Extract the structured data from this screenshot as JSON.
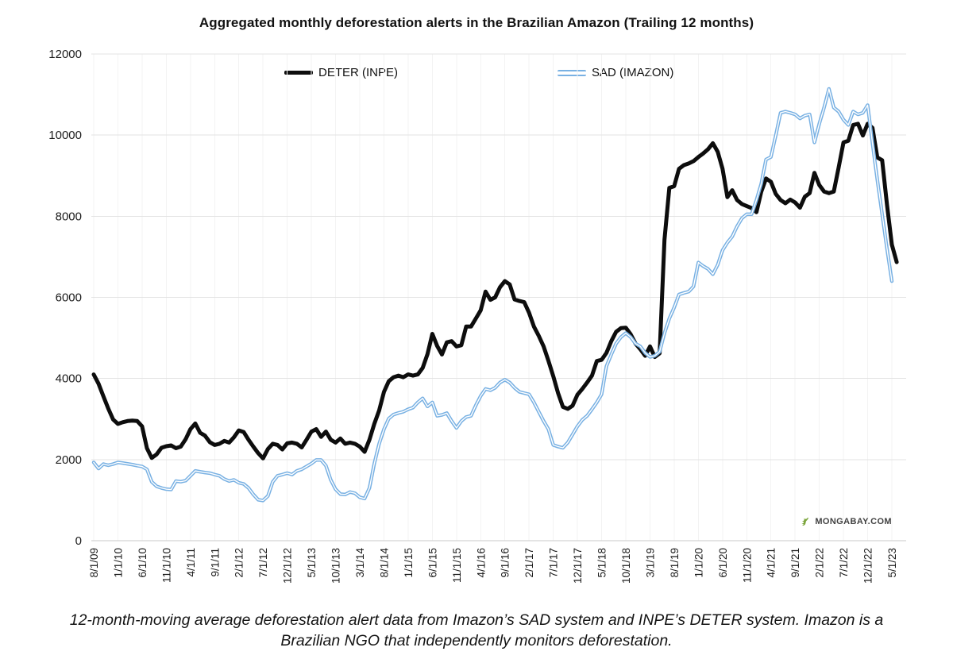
{
  "title": "Aggregated monthly deforestation alerts in the Brazilian Amazon (Trailing 12 months)",
  "legend": [
    {
      "label": "DETER (INPE)",
      "color": "#0d0d0d",
      "style": "solid"
    },
    {
      "label": "SAD (IMAZON)",
      "color": "#79b1e3",
      "style": "double"
    }
  ],
  "branding": {
    "text": "MONGABAY.COM",
    "icon": "gecko-icon",
    "text_color": "#414141",
    "icon_color": "#7ca63d"
  },
  "caption": "12-month-moving average deforestation alert data from Imazon’s SAD system and INPE’s DETER system. Imazon is a Brazilian NGO that independently monitors deforestation.",
  "chart_data": {
    "type": "line",
    "title": "Aggregated monthly deforestation alerts in the Brazilian Amazon (Trailing 12 months)",
    "xlabel": "",
    "ylabel": "",
    "ylim": [
      0,
      12000
    ],
    "yticks": [
      0,
      2000,
      4000,
      6000,
      8000,
      10000,
      12000
    ],
    "grid": true,
    "legend_position": "top-inside",
    "x_monthly_start": "8/1/09",
    "x_tick_every_months": 5,
    "x_tick_labels": [
      "8/1/09",
      "1/1/10",
      "6/1/10",
      "11/1/10",
      "4/1/11",
      "9/1/11",
      "2/1/12",
      "7/1/12",
      "12/1/12",
      "5/1/13",
      "10/1/13",
      "3/1/14",
      "8/1/14",
      "1/1/15",
      "6/1/15",
      "11/1/15",
      "4/1/16",
      "9/1/16",
      "2/1/17",
      "7/1/17",
      "12/1/17",
      "5/1/18",
      "10/1/18",
      "3/1/19",
      "8/1/19",
      "1/1/20",
      "6/1/20",
      "11/1/20",
      "4/1/21",
      "9/1/21",
      "2/1/22",
      "7/1/22",
      "12/1/22",
      "5/1/23"
    ],
    "series": [
      {
        "name": "DETER (INPE)",
        "color": "#0d0d0d",
        "width": 5,
        "double_line": false,
        "values": [
          4100,
          3870,
          3560,
          3260,
          2990,
          2880,
          2920,
          2950,
          2960,
          2950,
          2820,
          2280,
          2040,
          2130,
          2290,
          2330,
          2350,
          2280,
          2320,
          2500,
          2750,
          2890,
          2660,
          2590,
          2430,
          2360,
          2390,
          2460,
          2420,
          2550,
          2720,
          2680,
          2490,
          2320,
          2160,
          2030,
          2260,
          2390,
          2360,
          2250,
          2400,
          2420,
          2390,
          2300,
          2490,
          2690,
          2750,
          2560,
          2690,
          2490,
          2420,
          2520,
          2390,
          2420,
          2390,
          2320,
          2190,
          2490,
          2880,
          3210,
          3670,
          3930,
          4030,
          4070,
          4030,
          4100,
          4070,
          4100,
          4260,
          4600,
          5100,
          4800,
          4590,
          4890,
          4920,
          4790,
          4820,
          5280,
          5280,
          5480,
          5680,
          6140,
          5940,
          6000,
          6250,
          6400,
          6320,
          5950,
          5910,
          5880,
          5620,
          5280,
          5050,
          4790,
          4440,
          4060,
          3640,
          3300,
          3250,
          3330,
          3600,
          3740,
          3900,
          4070,
          4430,
          4460,
          4630,
          4920,
          5150,
          5240,
          5250,
          5090,
          4860,
          4720,
          4560,
          4790,
          4530,
          4620,
          7420,
          8700,
          8740,
          9170,
          9260,
          9300,
          9360,
          9460,
          9550,
          9650,
          9800,
          9590,
          9170,
          8470,
          8640,
          8400,
          8300,
          8250,
          8200,
          8100,
          8600,
          8930,
          8850,
          8550,
          8400,
          8320,
          8410,
          8340,
          8210,
          8480,
          8570,
          9070,
          8770,
          8610,
          8570,
          8610,
          9200,
          9820,
          9860,
          10250,
          10280,
          9990,
          10280,
          10180,
          9450,
          9380,
          8280,
          7300,
          6870
        ]
      },
      {
        "name": "SAD (IMAZON)",
        "color": "#79b1e3",
        "width": 4.4,
        "double_line": true,
        "values": [
          1930,
          1780,
          1890,
          1860,
          1890,
          1930,
          1915,
          1895,
          1875,
          1850,
          1830,
          1760,
          1450,
          1340,
          1300,
          1270,
          1260,
          1470,
          1455,
          1480,
          1600,
          1720,
          1700,
          1680,
          1665,
          1630,
          1600,
          1520,
          1470,
          1500,
          1430,
          1400,
          1300,
          1140,
          1010,
          990,
          1100,
          1450,
          1600,
          1630,
          1665,
          1630,
          1720,
          1760,
          1830,
          1900,
          1990,
          1990,
          1850,
          1500,
          1270,
          1150,
          1140,
          1200,
          1170,
          1070,
          1040,
          1300,
          1900,
          2390,
          2750,
          3010,
          3110,
          3150,
          3180,
          3240,
          3280,
          3410,
          3510,
          3310,
          3410,
          3080,
          3100,
          3145,
          2950,
          2780,
          2950,
          3050,
          3080,
          3340,
          3570,
          3740,
          3710,
          3770,
          3900,
          3970,
          3900,
          3770,
          3670,
          3640,
          3610,
          3410,
          3180,
          2950,
          2750,
          2360,
          2320,
          2290,
          2420,
          2620,
          2820,
          2980,
          3080,
          3240,
          3410,
          3610,
          4300,
          4590,
          4860,
          5020,
          5120,
          5020,
          4860,
          4790,
          4630,
          4530,
          4560,
          4660,
          5120,
          5480,
          5750,
          6070,
          6110,
          6140,
          6270,
          6860,
          6770,
          6700,
          6570,
          6800,
          7160,
          7350,
          7500,
          7750,
          7950,
          8050,
          8050,
          8400,
          8800,
          9400,
          9460,
          9990,
          10550,
          10580,
          10550,
          10510,
          10410,
          10480,
          10510,
          9820,
          10280,
          10680,
          11140,
          10680,
          10580,
          10380,
          10250,
          10580,
          10510,
          10550,
          10740,
          9800,
          8900,
          8050,
          7200,
          6400
        ]
      }
    ]
  }
}
